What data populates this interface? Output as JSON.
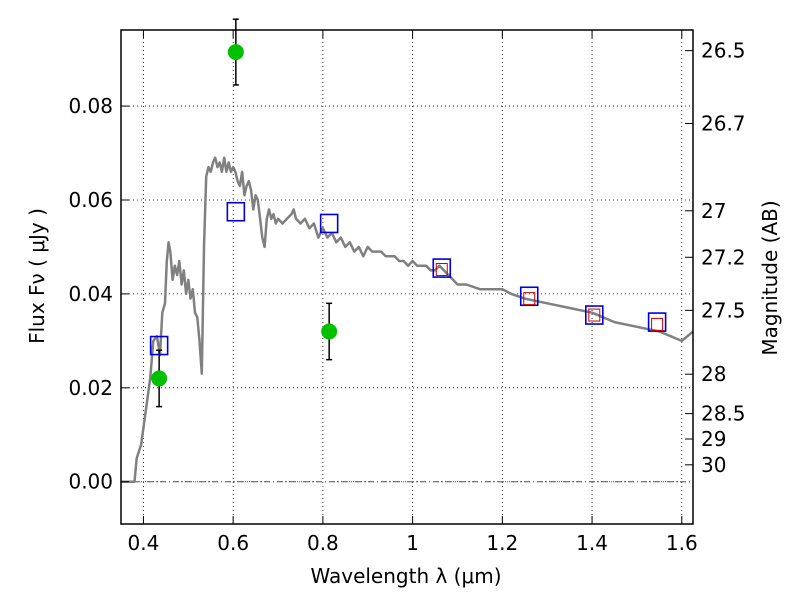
{
  "chart_data": {
    "type": "scatter",
    "xlabel": "Wavelength  λ (μm)",
    "ylabel_left": "Flux  Fν  ( μJy )",
    "ylabel_right": "Magnitude (AB)",
    "xlim": [
      0.35,
      1.625
    ],
    "ylim": [
      -0.009,
      0.0962
    ],
    "x_ticks": [
      0.4,
      0.6,
      0.8,
      1.0,
      1.2,
      1.4,
      1.6
    ],
    "x_tick_labels": [
      "0.4",
      "0.6",
      "0.8",
      "1",
      "1.2",
      "1.4",
      "1.6"
    ],
    "y_ticks": [
      0.0,
      0.02,
      0.04,
      0.06,
      0.08
    ],
    "y_tick_labels": [
      "0.00",
      "0.02",
      "0.04",
      "0.06",
      "0.08"
    ],
    "right_ticks": [
      {
        "flux": 0.0918,
        "label": "26.5"
      },
      {
        "flux": 0.0763,
        "label": "26.7"
      },
      {
        "flux": 0.0577,
        "label": "27"
      },
      {
        "flux": 0.0478,
        "label": "27.2"
      },
      {
        "flux": 0.0365,
        "label": "27.5"
      },
      {
        "flux": 0.0229,
        "label": "28"
      },
      {
        "flux": 0.0145,
        "label": "28.5"
      },
      {
        "flux": 0.0091,
        "label": "29"
      },
      {
        "flux": 0.0036,
        "label": "30"
      }
    ],
    "grid": true,
    "colors": {
      "model_line": "#808080",
      "observed": "#00c000",
      "model_box": "#0000dd",
      "inner_box": "#cc0000",
      "errorbar": "#000000",
      "zero_line": "#555555"
    },
    "series": [
      {
        "kind": "line",
        "points": [
          [
            0.35,
            0.0
          ],
          [
            0.38,
            0.0
          ],
          [
            0.385,
            0.005
          ],
          [
            0.395,
            0.008
          ],
          [
            0.405,
            0.015
          ],
          [
            0.415,
            0.022
          ],
          [
            0.422,
            0.03
          ],
          [
            0.43,
            0.031
          ],
          [
            0.437,
            0.027
          ],
          [
            0.442,
            0.036
          ],
          [
            0.448,
            0.038
          ],
          [
            0.452,
            0.047
          ],
          [
            0.456,
            0.051
          ],
          [
            0.46,
            0.049
          ],
          [
            0.465,
            0.043
          ],
          [
            0.47,
            0.046
          ],
          [
            0.475,
            0.044
          ],
          [
            0.48,
            0.047
          ],
          [
            0.485,
            0.042
          ],
          [
            0.49,
            0.045
          ],
          [
            0.495,
            0.04
          ],
          [
            0.5,
            0.043
          ],
          [
            0.505,
            0.039
          ],
          [
            0.51,
            0.041
          ],
          [
            0.515,
            0.036
          ],
          [
            0.52,
            0.035
          ],
          [
            0.525,
            0.03
          ],
          [
            0.53,
            0.023
          ],
          [
            0.535,
            0.05
          ],
          [
            0.54,
            0.065
          ],
          [
            0.545,
            0.067
          ],
          [
            0.55,
            0.066
          ],
          [
            0.555,
            0.068
          ],
          [
            0.56,
            0.069
          ],
          [
            0.565,
            0.067
          ],
          [
            0.57,
            0.068
          ],
          [
            0.575,
            0.066
          ],
          [
            0.58,
            0.069
          ],
          [
            0.585,
            0.066
          ],
          [
            0.59,
            0.068
          ],
          [
            0.595,
            0.066
          ],
          [
            0.6,
            0.067
          ],
          [
            0.605,
            0.066
          ],
          [
            0.61,
            0.064
          ],
          [
            0.615,
            0.063
          ],
          [
            0.62,
            0.066
          ],
          [
            0.625,
            0.061
          ],
          [
            0.63,
            0.063
          ],
          [
            0.635,
            0.064
          ],
          [
            0.64,
            0.062
          ],
          [
            0.645,
            0.058
          ],
          [
            0.65,
            0.061
          ],
          [
            0.655,
            0.06
          ],
          [
            0.66,
            0.056
          ],
          [
            0.665,
            0.052
          ],
          [
            0.67,
            0.05
          ],
          [
            0.675,
            0.056
          ],
          [
            0.68,
            0.058
          ],
          [
            0.685,
            0.056
          ],
          [
            0.69,
            0.057
          ],
          [
            0.695,
            0.055
          ],
          [
            0.7,
            0.056
          ],
          [
            0.71,
            0.055
          ],
          [
            0.72,
            0.056
          ],
          [
            0.73,
            0.057
          ],
          [
            0.735,
            0.058
          ],
          [
            0.74,
            0.056
          ],
          [
            0.75,
            0.055
          ],
          [
            0.76,
            0.056
          ],
          [
            0.77,
            0.054
          ],
          [
            0.78,
            0.055
          ],
          [
            0.79,
            0.052
          ],
          [
            0.8,
            0.054
          ],
          [
            0.81,
            0.052
          ],
          [
            0.82,
            0.053
          ],
          [
            0.83,
            0.051
          ],
          [
            0.84,
            0.052
          ],
          [
            0.85,
            0.05
          ],
          [
            0.86,
            0.051
          ],
          [
            0.87,
            0.049
          ],
          [
            0.88,
            0.05
          ],
          [
            0.89,
            0.048
          ],
          [
            0.9,
            0.05
          ],
          [
            0.91,
            0.049
          ],
          [
            0.92,
            0.049
          ],
          [
            0.93,
            0.049
          ],
          [
            0.94,
            0.048
          ],
          [
            0.95,
            0.048
          ],
          [
            0.96,
            0.048
          ],
          [
            0.97,
            0.047
          ],
          [
            0.98,
            0.047
          ],
          [
            0.99,
            0.046
          ],
          [
            1.0,
            0.047
          ],
          [
            1.01,
            0.046
          ],
          [
            1.02,
            0.046
          ],
          [
            1.03,
            0.046
          ],
          [
            1.04,
            0.045
          ],
          [
            1.05,
            0.045
          ],
          [
            1.06,
            0.046
          ],
          [
            1.07,
            0.045
          ],
          [
            1.08,
            0.044
          ],
          [
            1.09,
            0.043
          ],
          [
            1.1,
            0.042
          ],
          [
            1.12,
            0.042
          ],
          [
            1.15,
            0.041
          ],
          [
            1.2,
            0.041
          ],
          [
            1.22,
            0.04
          ],
          [
            1.25,
            0.039
          ],
          [
            1.3,
            0.038
          ],
          [
            1.35,
            0.037
          ],
          [
            1.4,
            0.036
          ],
          [
            1.45,
            0.034
          ],
          [
            1.5,
            0.033
          ],
          [
            1.55,
            0.032
          ],
          [
            1.6,
            0.03
          ],
          [
            1.625,
            0.032
          ]
        ]
      },
      {
        "kind": "errorbar-scatter",
        "points": [
          {
            "x": 0.435,
            "y": 0.022,
            "err": 0.006
          },
          {
            "x": 0.606,
            "y": 0.0915,
            "err": 0.007
          },
          {
            "x": 0.814,
            "y": 0.032,
            "err": 0.006
          }
        ]
      },
      {
        "kind": "box",
        "points": [
          {
            "x": 0.435,
            "y": 0.029
          },
          {
            "x": 0.606,
            "y": 0.0575
          },
          {
            "x": 0.814,
            "y": 0.055
          },
          {
            "x": 1.065,
            "y": 0.0455
          },
          {
            "x": 1.26,
            "y": 0.0395
          },
          {
            "x": 1.405,
            "y": 0.0355
          },
          {
            "x": 1.545,
            "y": 0.034
          }
        ]
      },
      {
        "kind": "inner-box",
        "points": [
          {
            "x": 1.065,
            "y": 0.0452
          },
          {
            "x": 1.26,
            "y": 0.039
          },
          {
            "x": 1.405,
            "y": 0.0355
          },
          {
            "x": 1.545,
            "y": 0.0335
          }
        ]
      }
    ]
  }
}
